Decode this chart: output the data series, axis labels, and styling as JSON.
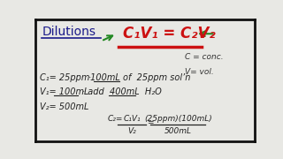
{
  "bg_color": "#e8e8e4",
  "white_bg": "#f0f0ec",
  "border_color": "#111111",
  "title_text": "Dilutions",
  "title_color": "#1a1a8a",
  "title_underline_color": "#1a1a8a",
  "arrow_color": "#228822",
  "formula_color": "#cc1111",
  "formula_text": "C₁V₁ = C₂V₂",
  "formula_underline_color": "#cc1111",
  "legend_color": "#333333",
  "legend_c": "C = conc.",
  "legend_v": "V= vol.",
  "body_color": "#222222",
  "line1_a": "C₁= 25ppm",
  "line1_b": "·100mL",
  "line1_c": "of  25ppm sol’n",
  "line2_a": "V₁= 100mL",
  "line2_b": "· add  400mL  H₂O",
  "line3": "V₂= 500mL",
  "calc_c2": "C₂=",
  "calc_num": "C₁V₁",
  "calc_den": "V₂",
  "calc_eq": "=",
  "calc_rnum": "(25ppm)(100mL)",
  "calc_rden": "500mL"
}
